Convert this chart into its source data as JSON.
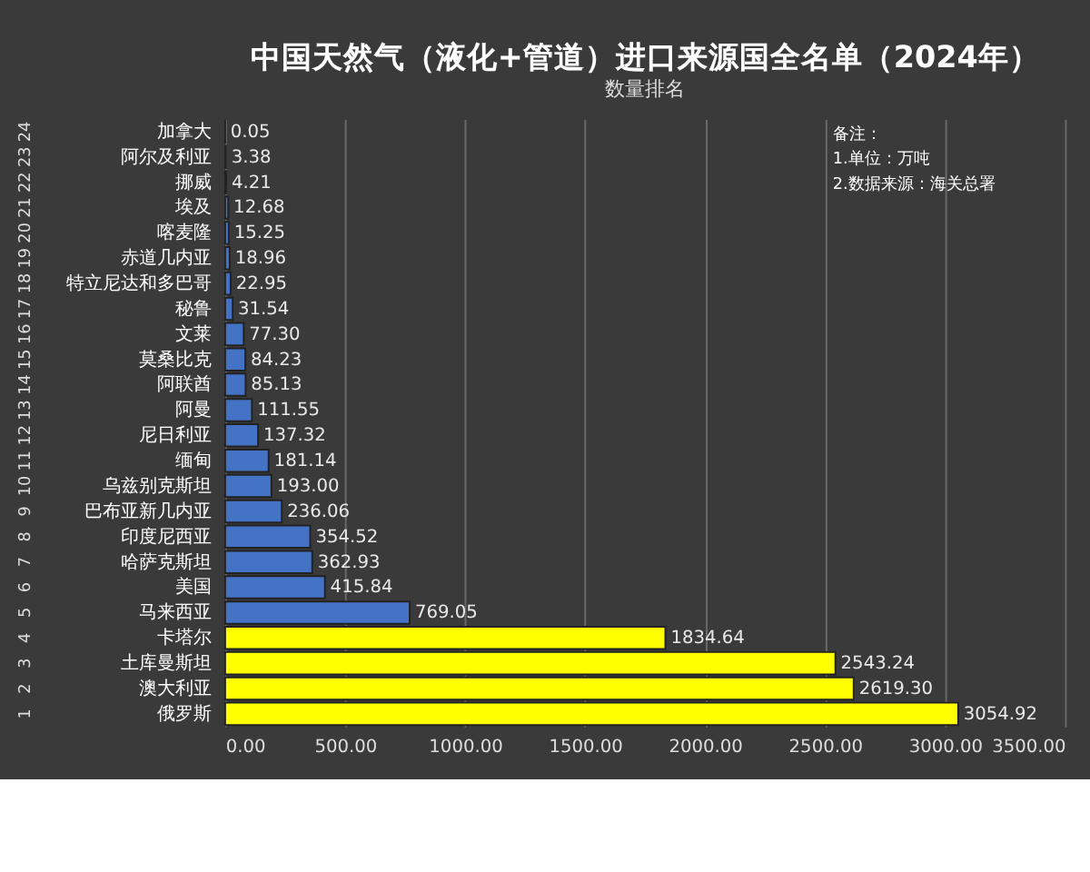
{
  "chart_data": {
    "type": "bar",
    "orientation": "horizontal",
    "title": "中国天然气（液化+管道）进口来源国全名单（2024年）",
    "subtitle": "数量排名",
    "categories": [
      "加拿大",
      "阿尔及利亚",
      "挪威",
      "埃及",
      "喀麦隆",
      "赤道几内亚",
      "特立尼达和多巴哥",
      "秘鲁",
      "文莱",
      "莫桑比克",
      "阿联酋",
      "阿曼",
      "尼日利亚",
      "缅甸",
      "乌兹别克斯坦",
      "巴布亚新几内亚",
      "印度尼西亚",
      "哈萨克斯坦",
      "美国",
      "马来西亚",
      "卡塔尔",
      "土库曼斯坦",
      "澳大利亚",
      "俄罗斯"
    ],
    "values": [
      0.05,
      3.38,
      4.21,
      12.68,
      15.25,
      18.96,
      22.95,
      31.54,
      77.3,
      84.23,
      85.13,
      111.55,
      137.32,
      181.14,
      193.0,
      236.06,
      354.52,
      362.93,
      415.84,
      769.05,
      1834.64,
      2543.24,
      2619.3,
      3054.92
    ],
    "value_labels": [
      "0.05",
      "3.38",
      "4.21",
      "12.68",
      "15.25",
      "18.96",
      "22.95",
      "31.54",
      "77.30",
      "84.23",
      "85.13",
      "111.55",
      "137.32",
      "181.14",
      "193.00",
      "236.06",
      "354.52",
      "362.93",
      "415.84",
      "769.05",
      "1834.64",
      "2543.24",
      "2619.30",
      "3054.92"
    ],
    "colors": [
      "#4472c4",
      "#4472c4",
      "#4472c4",
      "#4472c4",
      "#4472c4",
      "#4472c4",
      "#4472c4",
      "#4472c4",
      "#4472c4",
      "#4472c4",
      "#4472c4",
      "#4472c4",
      "#4472c4",
      "#4472c4",
      "#4472c4",
      "#4472c4",
      "#4472c4",
      "#4472c4",
      "#4472c4",
      "#4472c4",
      "#ffff00",
      "#ffff00",
      "#ffff00",
      "#ffff00"
    ],
    "xlim": [
      0,
      3500
    ],
    "xticks": [
      {
        "value": 0,
        "label": "0.00"
      },
      {
        "value": 500,
        "label": "500.00"
      },
      {
        "value": 1000,
        "label": "1000.00"
      },
      {
        "value": 1500,
        "label": "1500.00"
      },
      {
        "value": 2000,
        "label": "2000.00"
      },
      {
        "value": 2500,
        "label": "2500.00"
      },
      {
        "value": 3000,
        "label": "3000.00"
      },
      {
        "value": 3500,
        "label": "3500.00"
      }
    ],
    "grid": "x",
    "annotations": [
      "24",
      "23",
      "22",
      "21",
      "20",
      "19",
      "18",
      "17",
      "16",
      "15",
      "14",
      "13",
      "12",
      "11",
      "10",
      "9",
      "8",
      "7",
      "6",
      "5",
      "4",
      "3",
      "2",
      "1",
      "备注：",
      "1.单位：万吨",
      "2.数据来源：海关总署"
    ]
  }
}
